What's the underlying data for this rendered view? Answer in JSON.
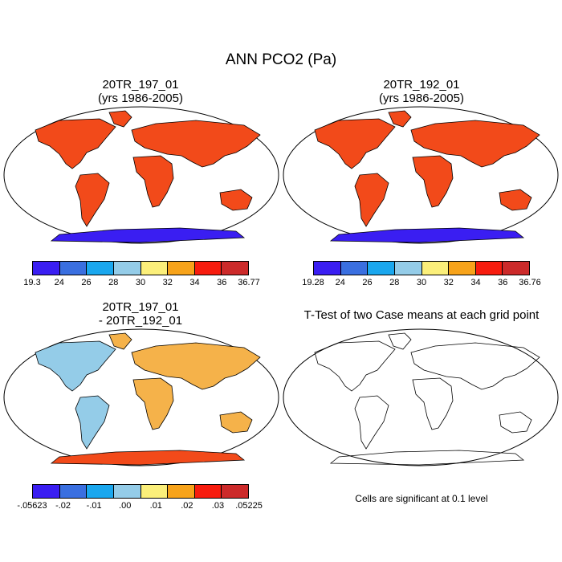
{
  "title": "ANN PCO2 (Pa)",
  "colors": {
    "scale": [
      "#3a1ef2",
      "#3a6fe0",
      "#1aa7ee",
      "#94cce8",
      "#fbef7a",
      "#f7a31a",
      "#f71c0e",
      "#cc2a2a"
    ],
    "land": "#f24a1a",
    "diff_land": "#f5b24a"
  },
  "panels": {
    "p1": {
      "title_line1": "20TR_197_01",
      "title_line2": "(yrs 1986-2005)",
      "colorbar_labels": [
        "19.3",
        "24",
        "26",
        "28",
        "30",
        "32",
        "34",
        "36",
        "36.77"
      ]
    },
    "p2": {
      "title_line1": "20TR_192_01",
      "title_line2": "(yrs 1986-2005)",
      "colorbar_labels": [
        "19.28",
        "24",
        "26",
        "28",
        "30",
        "32",
        "34",
        "36",
        "36.76"
      ]
    },
    "p3": {
      "title_line1": "20TR_197_01",
      "title_line2": "- 20TR_192_01",
      "colorbar_labels": [
        "-.05623",
        "-.02",
        "-.01",
        ".00",
        ".01",
        ".02",
        ".03",
        ".05225"
      ]
    },
    "p4": {
      "title": "T-Test of two Case means at each grid point",
      "note": "Cells are significant at 0.1 level"
    }
  }
}
